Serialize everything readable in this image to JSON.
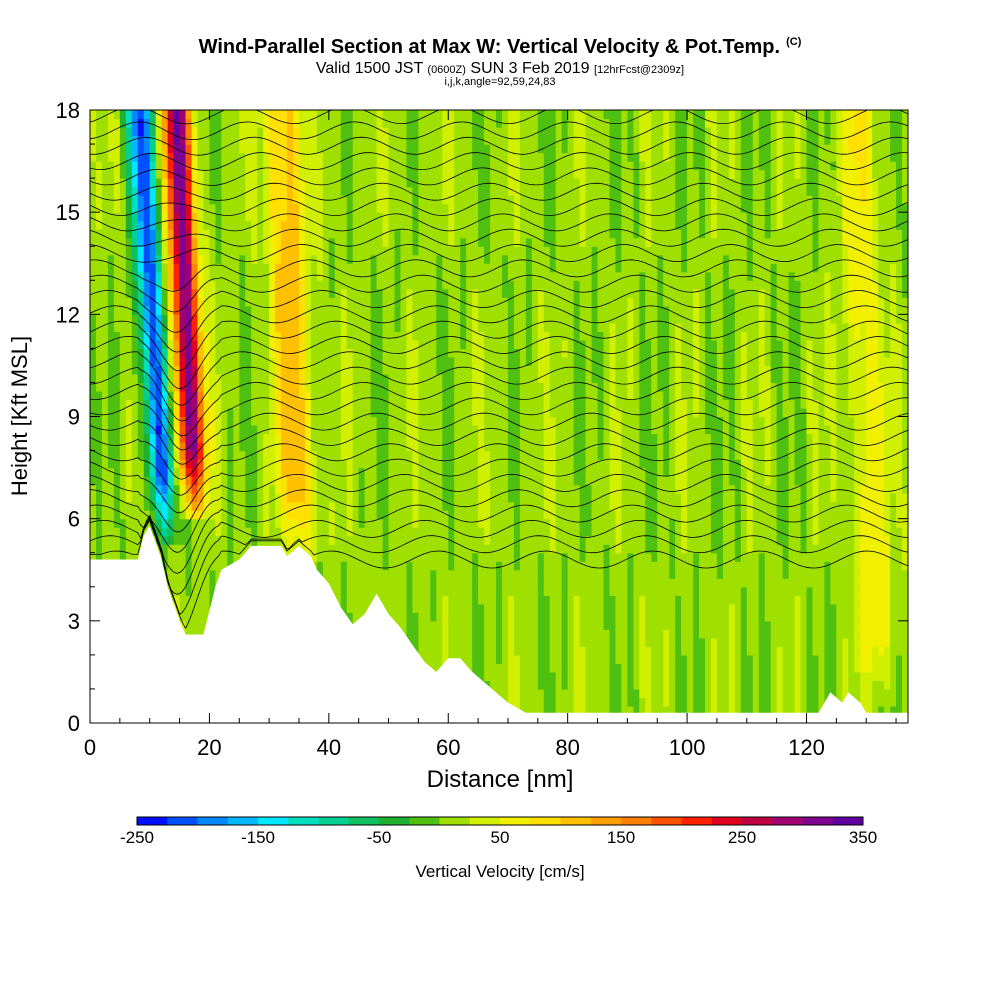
{
  "chart_data": {
    "type": "heatmap",
    "title": "Wind-Parallel Section at Max W: Vertical Velocity & Pot.Temp.",
    "copyright": "(C)",
    "subtitle_main": "Valid 1500 JST",
    "subtitle_zulu": "(0600Z)",
    "subtitle_date": "SUN 3 Feb 2019",
    "subtitle_fcst": "[12hrFcst@2309z]",
    "subtitle2": "i,j,k,angle=92,59,24,83",
    "xlabel": "Distance [nm]",
    "ylabel": "Height [Kft MSL]",
    "colorbar_label": "Vertical Velocity [cm/s]",
    "xlim": [
      0,
      137
    ],
    "ylim": [
      0,
      18
    ],
    "x_ticks": [
      0,
      20,
      40,
      60,
      80,
      100,
      120
    ],
    "y_ticks": [
      0,
      3,
      6,
      9,
      12,
      15,
      18
    ],
    "colorbar_ticks": [
      "-250",
      "-150",
      "-50",
      "50",
      "150",
      "250",
      "350"
    ],
    "colorbar_range": [
      -250,
      350
    ],
    "colorbar_step": 25,
    "colorbar_colors": [
      "#0010ff",
      "#0050ff",
      "#0088ff",
      "#00b8ff",
      "#00e8ff",
      "#00e0c0",
      "#00d090",
      "#10c060",
      "#20b030",
      "#50c010",
      "#a0e000",
      "#d0f000",
      "#f0f000",
      "#ffe000",
      "#ffc000",
      "#ffa000",
      "#ff8000",
      "#ff5000",
      "#ff2000",
      "#e00020",
      "#c00040",
      "#a00070",
      "#800090",
      "#6000a0"
    ],
    "cross_section_features": [
      {
        "kind": "downdraft",
        "center_x": 11,
        "min_y": 5.8,
        "max_y": 18,
        "value": -225
      },
      {
        "kind": "updraft",
        "center_x": 16.5,
        "min_y": 6.5,
        "max_y": 18,
        "value": 300
      },
      {
        "kind": "updraft",
        "center_x": 34,
        "min_y": 5.2,
        "max_y": 18,
        "value": 110
      },
      {
        "kind": "updraft",
        "center_x": 130,
        "min_y": 1,
        "max_y": 18,
        "value": 60
      }
    ],
    "terrain_profile": [
      {
        "x": 0,
        "h": 4.8
      },
      {
        "x": 8,
        "h": 4.8
      },
      {
        "x": 9,
        "h": 5.5
      },
      {
        "x": 10,
        "h": 5.8
      },
      {
        "x": 11,
        "h": 5.3
      },
      {
        "x": 12,
        "h": 4.8
      },
      {
        "x": 13,
        "h": 4.0
      },
      {
        "x": 14,
        "h": 3.5
      },
      {
        "x": 15,
        "h": 3.0
      },
      {
        "x": 16,
        "h": 2.6
      },
      {
        "x": 19,
        "h": 2.6
      },
      {
        "x": 20,
        "h": 3.3
      },
      {
        "x": 21,
        "h": 4.0
      },
      {
        "x": 22,
        "h": 4.5
      },
      {
        "x": 25,
        "h": 4.8
      },
      {
        "x": 27,
        "h": 5.2
      },
      {
        "x": 32,
        "h": 5.2
      },
      {
        "x": 33,
        "h": 4.9
      },
      {
        "x": 35,
        "h": 5.2
      },
      {
        "x": 37,
        "h": 4.9
      },
      {
        "x": 38,
        "h": 4.5
      },
      {
        "x": 40,
        "h": 4.1
      },
      {
        "x": 42,
        "h": 3.4
      },
      {
        "x": 44,
        "h": 2.9
      },
      {
        "x": 46,
        "h": 3.2
      },
      {
        "x": 48,
        "h": 3.8
      },
      {
        "x": 50,
        "h": 3.2
      },
      {
        "x": 52,
        "h": 2.8
      },
      {
        "x": 54,
        "h": 2.3
      },
      {
        "x": 56,
        "h": 1.8
      },
      {
        "x": 58,
        "h": 1.5
      },
      {
        "x": 60,
        "h": 1.9
      },
      {
        "x": 62,
        "h": 1.9
      },
      {
        "x": 64,
        "h": 1.5
      },
      {
        "x": 66,
        "h": 1.2
      },
      {
        "x": 68,
        "h": 0.9
      },
      {
        "x": 70,
        "h": 0.6
      },
      {
        "x": 73,
        "h": 0.3
      },
      {
        "x": 122,
        "h": 0.3
      },
      {
        "x": 123,
        "h": 0.6
      },
      {
        "x": 124,
        "h": 0.9
      },
      {
        "x": 126,
        "h": 0.6
      },
      {
        "x": 127,
        "h": 0.9
      },
      {
        "x": 129,
        "h": 0.6
      },
      {
        "x": 130,
        "h": 0.3
      },
      {
        "x": 137,
        "h": 0.3
      }
    ]
  }
}
